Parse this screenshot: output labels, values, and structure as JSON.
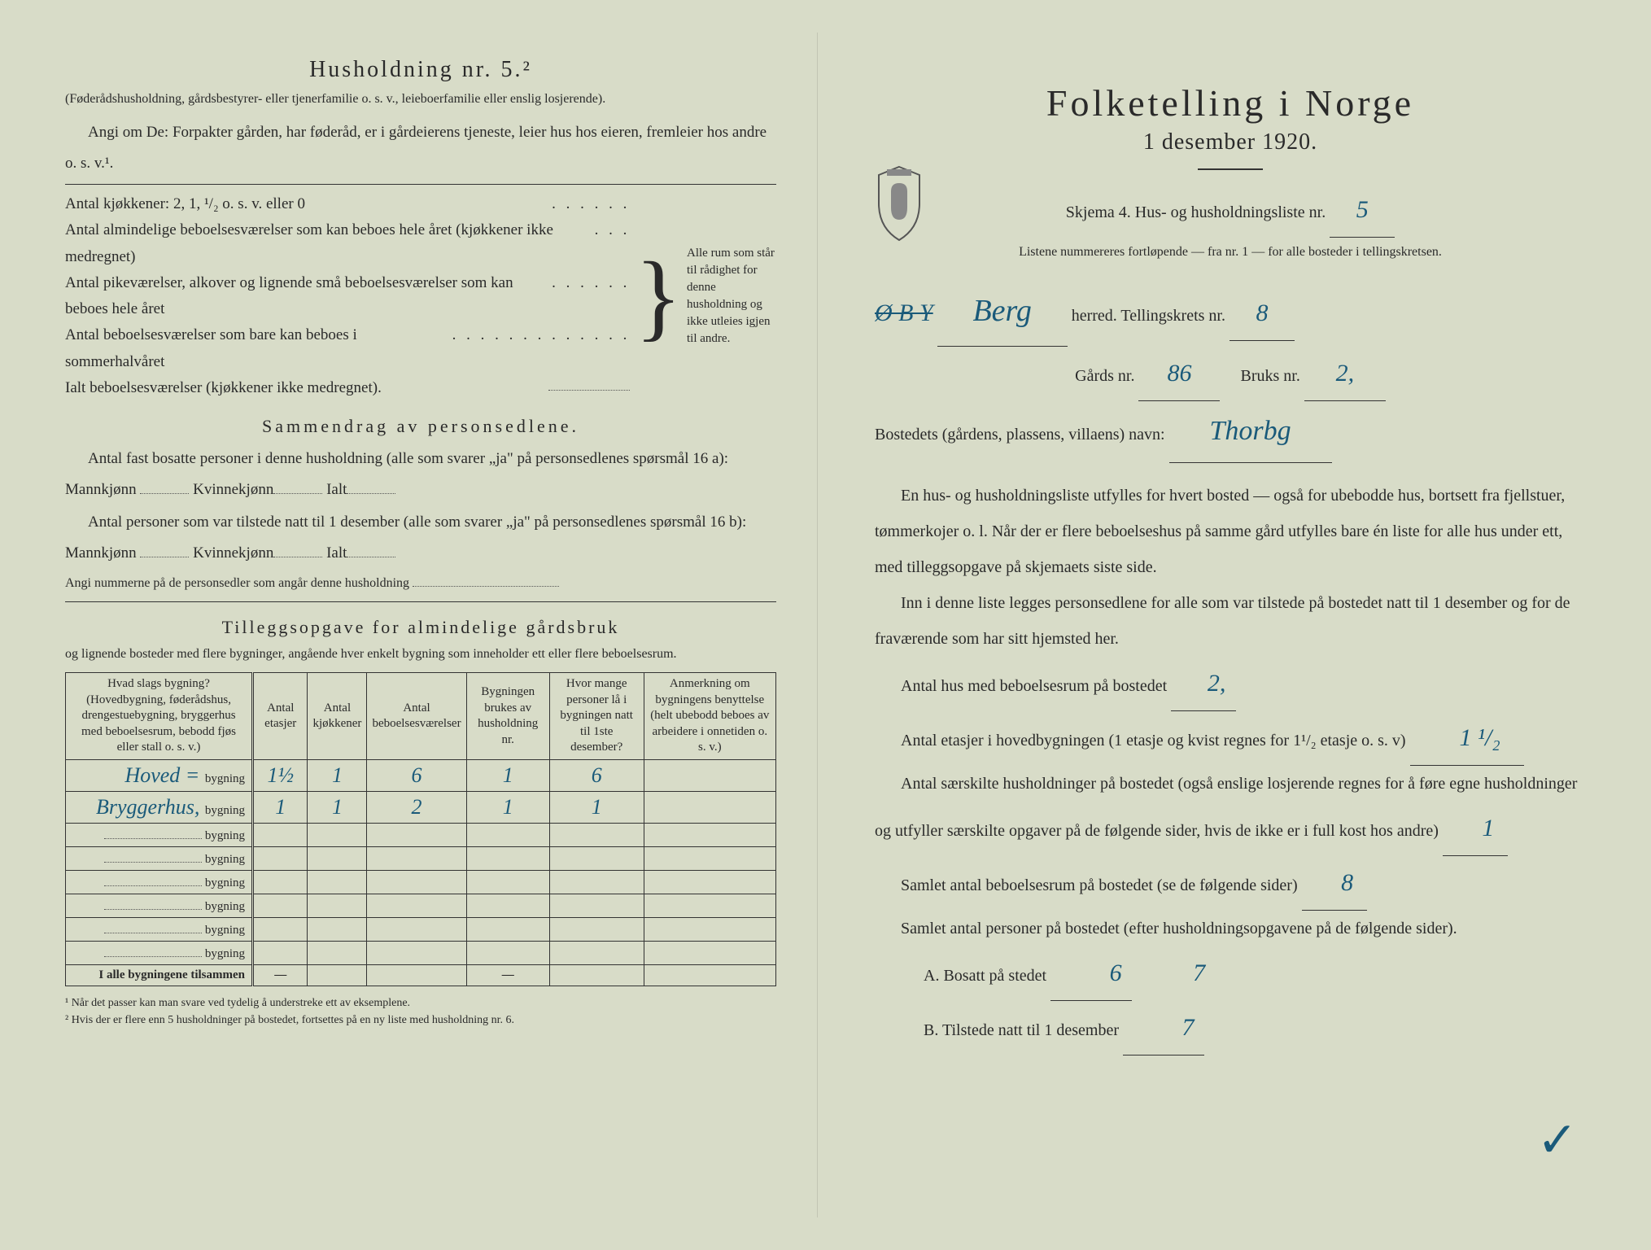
{
  "colors": {
    "paper_bg": "#d8dcc8",
    "text": "#2a2a2a",
    "handwriting": "#1a5a7a",
    "rule": "#333333"
  },
  "typography": {
    "body_fontsize_pt": 15,
    "title_fontsize_pt": 34,
    "handwriting_fontsize_pt": 22,
    "font_family_body": "Georgia/serif",
    "font_family_handwriting": "cursive"
  },
  "left": {
    "husholdning_title": "Husholdning nr. 5.²",
    "husholdning_sub": "(Føderådshusholdning, gårdsbestyrer- eller tjenerfamilie o. s. v., leieboerfamilie eller enslig losjerende).",
    "angi_text": "Angi om De: Forpakter gården, har føderåd, er i gårdeierens tjeneste, leier hus hos eieren, fremleier hos andre o. s. v.¹.",
    "kitchens_line": "Antal kjøkkener: 2, 1, ¹/₂ o. s. v. eller 0",
    "rooms_line1": "Antal almindelige beboelsesværelser som kan beboes hele året (kjøkkener ikke medregnet)",
    "rooms_line2": "Antal pikeværelser, alkover og lignende små beboelsesværelser som kan beboes hele året",
    "rooms_line3": "Antal beboelsesværelser som bare kan beboes i sommerhalvåret",
    "ialt_line": "Ialt beboelsesværelser (kjøkkener ikke medregnet).",
    "brace_text": "Alle rum som står til rådighet for denne husholdning og ikke utleies igjen til andre.",
    "sammendrag_title": "Sammendrag av personsedlene.",
    "sammendrag_p1a": "Antal fast bosatte personer i denne husholdning (alle som svarer „ja\" på personsedlenes spørsmål 16 a): Mannkjønn",
    "sammendrag_kv": "Kvinnekjønn",
    "sammendrag_ialt": "Ialt",
    "sammendrag_p2a": "Antal personer som var tilstede natt til 1 desember (alle som svarer „ja\" på personsedlenes spørsmål 16 b): Mannkjønn",
    "angi_nummer": "Angi nummerne på de personsedler som angår denne husholdning",
    "tillegg_title": "Tilleggsopgave for almindelige gårdsbruk",
    "tillegg_sub": "og lignende bosteder med flere bygninger, angående hver enkelt bygning som inneholder ett eller flere beboelsesrum.",
    "table": {
      "headers": [
        "Hvad slags bygning?\n(Hovedbygning, føderådshus, drengestuebygning, bryggerhus med beboelsesrum, bebodd fjøs eller stall o. s. v.)",
        "Antal etasjer",
        "Antal kjøkkener",
        "Antal beboelsesværelser",
        "Bygningen brukes av husholdning nr.",
        "Hvor mange personer lå i bygningen natt til 1ste desember?",
        "Anmerkning om bygningens benyttelse (helt ubebodd beboes av arbeidere i onnetiden o. s. v.)"
      ],
      "col_widths_pct": [
        28,
        8,
        8,
        10,
        12,
        14,
        20
      ],
      "row_suffix": "bygning",
      "rows": [
        {
          "name": "Hoved =",
          "etasjer": "1½",
          "kjokkener": "1",
          "vaerelser": "6",
          "hushold": "1",
          "personer": "6",
          "anm": ""
        },
        {
          "name": "Bryggerhus,",
          "etasjer": "1",
          "kjokkener": "1",
          "vaerelser": "2",
          "hushold": "1",
          "personer": "1",
          "anm": ""
        },
        {
          "name": "",
          "etasjer": "",
          "kjokkener": "",
          "vaerelser": "",
          "hushold": "",
          "personer": "",
          "anm": ""
        },
        {
          "name": "",
          "etasjer": "",
          "kjokkener": "",
          "vaerelser": "",
          "hushold": "",
          "personer": "",
          "anm": ""
        },
        {
          "name": "",
          "etasjer": "",
          "kjokkener": "",
          "vaerelser": "",
          "hushold": "",
          "personer": "",
          "anm": ""
        },
        {
          "name": "",
          "etasjer": "",
          "kjokkener": "",
          "vaerelser": "",
          "hushold": "",
          "personer": "",
          "anm": ""
        },
        {
          "name": "",
          "etasjer": "",
          "kjokkener": "",
          "vaerelser": "",
          "hushold": "",
          "personer": "",
          "anm": ""
        },
        {
          "name": "",
          "etasjer": "",
          "kjokkener": "",
          "vaerelser": "",
          "hushold": "",
          "personer": "",
          "anm": ""
        }
      ],
      "total_label": "I alle bygningene tilsammen",
      "total_cells": [
        "—",
        "",
        "",
        "—",
        "",
        ""
      ]
    },
    "footnote1": "¹ Når det passer kan man svare ved tydelig å understreke ett av eksemplene.",
    "footnote2": "² Hvis der er flere enn 5 husholdninger på bostedet, fortsettes på en ny liste med husholdning nr. 6."
  },
  "right": {
    "title": "Folketelling i Norge",
    "date": "1 desember 1920.",
    "skjema_label": "Skjema 4.  Hus- og husholdningsliste nr.",
    "skjema_nr": "5",
    "list_note": "Listene nummereres fortløpende — fra nr. 1 — for alle bosteder i tellingskretsen.",
    "herred_prefix_struck": "Ø B Y",
    "herred_value": "Berg",
    "herred_label": "herred.    Tellingskrets nr.",
    "krets_nr": "8",
    "gard_label": "Gårds nr.",
    "gard_nr": "86",
    "bruk_label": "Bruks nr.",
    "bruk_nr": "2,",
    "bosted_label": "Bostedets (gårdens, plassens, villaens) navn:",
    "bosted_value": "Thorbg",
    "para1": "En hus- og husholdningsliste utfylles for hvert bosted — også for ubebodde hus, bortsett fra fjellstuer, tømmerkojer o. l. Når der er flere beboelseshus på samme gård utfylles bare én liste for alle hus under ett, med tilleggsopgave på skjemaets siste side.",
    "para2": "Inn i denne liste legges personsedlene for alle som var tilstede på bostedet natt til 1 desember og for de fraværende som har sitt hjemsted her.",
    "q_hus": "Antal hus med beboelsesrum på bostedet",
    "v_hus": "2,",
    "q_etasjer_a": "Antal etasjer i hovedbygningen (1 etasje og kvist regnes for 1¹/₂ etasje o. s. v)",
    "v_etasjer": "1 ¹/₂",
    "q_hush": "Antal særskilte husholdninger på bostedet (også enslige losjerende regnes for å føre egne husholdninger og utfyller særskilte opgaver på de følgende sider, hvis de ikke er i full kost hos andre)",
    "v_hush": "1",
    "q_rooms": "Samlet antal beboelsesrum på bostedet (se de følgende sider)",
    "v_rooms": "8",
    "q_persons": "Samlet antal personer på bostedet (efter husholdningsopgavene på de følgende sider).",
    "qA": "A.  Bosatt på stedet",
    "vA": "6",
    "vA2": "7",
    "qB": "B.  Tilstede natt til 1 desember",
    "vB": "7"
  }
}
